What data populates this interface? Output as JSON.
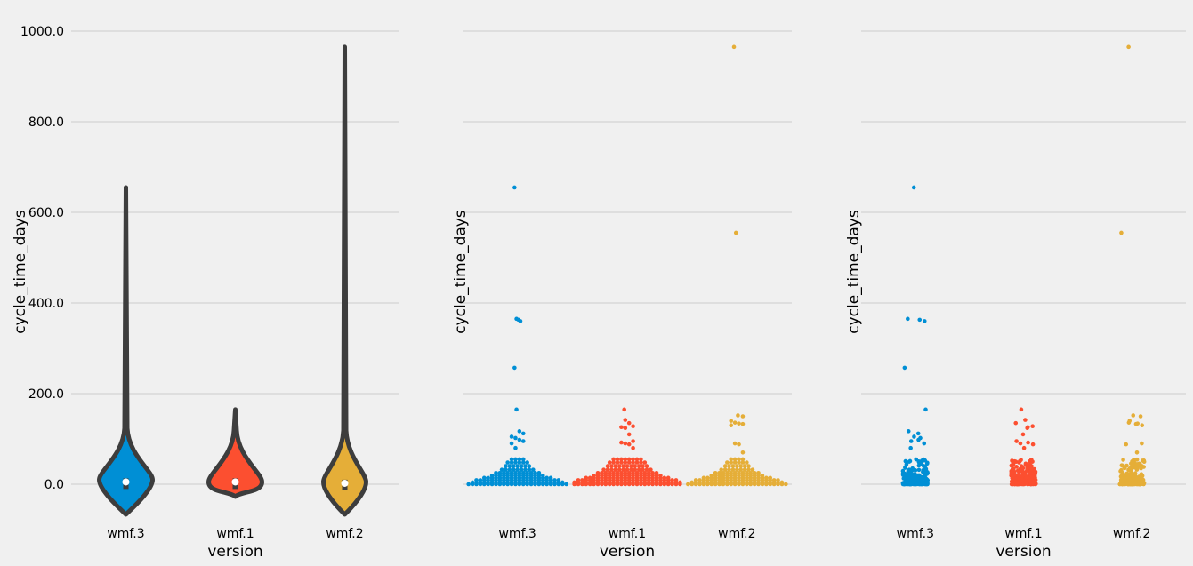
{
  "colors": {
    "wmf.3": "#008fd5",
    "wmf.1": "#fc4f30",
    "wmf.2": "#e5ae38",
    "violin_outline": "#3d3d3d",
    "grid": "#cbcbcb",
    "background": "#f0f0f0"
  },
  "chart_data": [
    {
      "type": "violin",
      "xlabel": "version",
      "ylabel": "cycle_time_days",
      "categories": [
        "wmf.3",
        "wmf.1",
        "wmf.2"
      ],
      "yticks": [
        "0.0",
        "200.0",
        "400.0",
        "600.0",
        "800.0",
        "1000.0"
      ],
      "ylim": [
        -90,
        1030
      ],
      "grid": true,
      "violins": [
        {
          "category": "wmf.3",
          "min": 0,
          "max": 655,
          "median": 5,
          "peak": 10,
          "color": "#008fd5"
        },
        {
          "category": "wmf.1",
          "min": 0,
          "max": 165,
          "median": 5,
          "peak": 5,
          "color": "#fc4f30"
        },
        {
          "category": "wmf.2",
          "min": 0,
          "max": 965,
          "median": 2,
          "peak": 5,
          "color": "#e5ae38"
        }
      ]
    },
    {
      "type": "swarm",
      "xlabel": "version",
      "ylabel": "cycle_time_days",
      "categories": [
        "wmf.3",
        "wmf.1",
        "wmf.2"
      ],
      "ylim": [
        -90,
        1030
      ],
      "grid": true,
      "outliers": {
        "wmf.3": [
          655,
          365,
          363,
          360,
          257,
          165,
          117,
          112,
          105,
          102,
          98,
          95,
          90,
          80
        ],
        "wmf.1": [
          165,
          142,
          135,
          128,
          126,
          124,
          110,
          95,
          92,
          90,
          88,
          80
        ],
        "wmf.2": [
          965,
          555,
          152,
          150,
          140,
          136,
          134,
          133,
          130,
          90,
          88,
          70
        ]
      },
      "bulk_counts": {
        "wmf.3": 145,
        "wmf.1": 210,
        "wmf.2": 150
      }
    },
    {
      "type": "strip",
      "xlabel": "version",
      "ylabel": "cycle_time_days",
      "categories": [
        "wmf.3",
        "wmf.1",
        "wmf.2"
      ],
      "ylim": [
        -90,
        1030
      ],
      "grid": true
    }
  ]
}
